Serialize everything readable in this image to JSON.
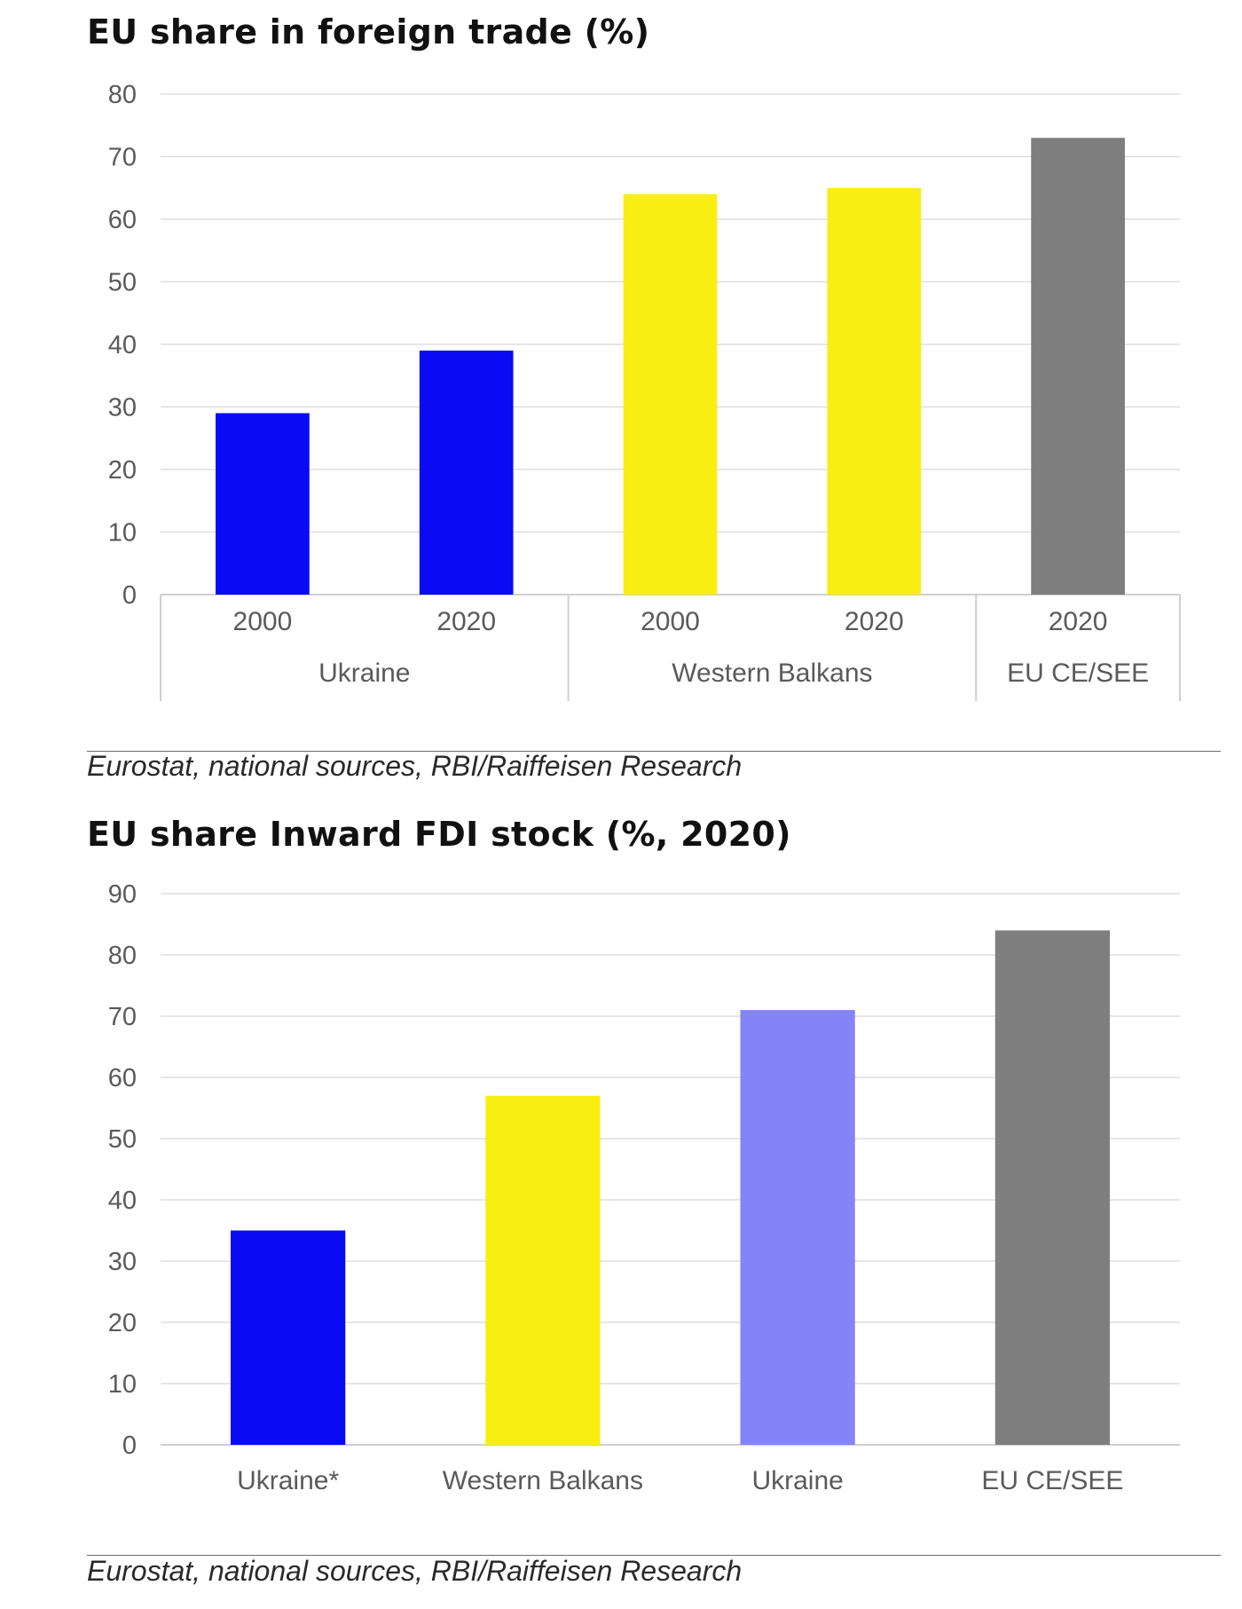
{
  "chart_data": [
    {
      "type": "bar",
      "title": "EU share in foreign trade (%)",
      "categories": [
        "2000",
        "2020",
        "2000",
        "2020",
        "2020"
      ],
      "groups": [
        {
          "label": "Ukraine",
          "count": 2
        },
        {
          "label": "Western Balkans",
          "count": 2
        },
        {
          "label": "EU CE/SEE",
          "count": 1
        }
      ],
      "values": [
        29,
        39,
        64,
        65,
        73
      ],
      "colors": [
        "#0a0af5",
        "#0a0af5",
        "#f8ee12",
        "#f8ee12",
        "#7f7f7f"
      ],
      "ylim": [
        0,
        80
      ],
      "yticks": [
        0,
        10,
        20,
        30,
        40,
        50,
        60,
        70,
        80
      ],
      "grid": true,
      "source": "Eurostat, national sources, RBI/Raiffeisen Research"
    },
    {
      "type": "bar",
      "title": "EU share Inward FDI stock (%, 2020)",
      "categories": [
        "Ukraine*",
        "Western Balkans",
        "Ukraine",
        "EU CE/SEE"
      ],
      "values": [
        35,
        57,
        71,
        84
      ],
      "colors": [
        "#0a0af5",
        "#f8ee12",
        "#8484f8",
        "#7f7f7f"
      ],
      "ylim": [
        0,
        90
      ],
      "yticks": [
        0,
        10,
        20,
        30,
        40,
        50,
        60,
        70,
        80,
        90
      ],
      "grid": true,
      "source": "Eurostat, national sources, RBI/Raiffeisen Research"
    }
  ]
}
